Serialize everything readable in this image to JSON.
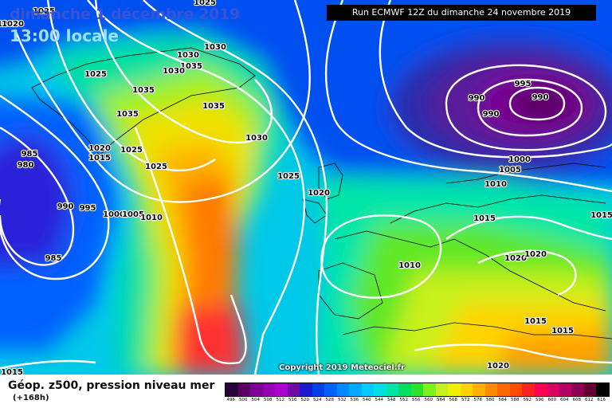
{
  "header": {
    "date_label": "dimanche 1 décembre 2019",
    "time_label": "13:00 locale",
    "run_label": "Run ECMWF 12Z du dimanche 24 novembre 2019"
  },
  "copyright": "Copyright 2019 Meteociel.fr",
  "legend": {
    "title": "Géop. z500, pression niveau mer",
    "lead": "(+168h)",
    "scale_values": [
      "496",
      "500",
      "504",
      "508",
      "512",
      "516",
      "520",
      "524",
      "528",
      "532",
      "536",
      "540",
      "544",
      "548",
      "552",
      "556",
      "560",
      "564",
      "568",
      "572",
      "576",
      "580",
      "584",
      "588",
      "592",
      "596",
      "600",
      "604",
      "608",
      "612",
      "616"
    ],
    "scale_colors": [
      "#2c003c",
      "#5a0064",
      "#7c0096",
      "#9600b4",
      "#aa00d0",
      "#6f0aa3",
      "#1c1ccf",
      "#0040e8",
      "#0060ff",
      "#0088ff",
      "#00aaff",
      "#00ccff",
      "#00e0e0",
      "#00e6a8",
      "#00e060",
      "#30e030",
      "#7ff01e",
      "#c8f01e",
      "#f0f000",
      "#ffd400",
      "#ffb000",
      "#ff8c00",
      "#ff6a00",
      "#ff4a00",
      "#ff2020",
      "#ff0050",
      "#dc0064",
      "#b40064",
      "#8c0050",
      "#640032",
      "#000000"
    ]
  },
  "isobars": [
    {
      "id": "a",
      "value": "1025"
    },
    {
      "id": "b",
      "value": "1030"
    },
    {
      "id": "c",
      "value": "1030"
    },
    {
      "id": "d",
      "value": "1030"
    },
    {
      "id": "e",
      "value": "1035"
    },
    {
      "id": "f",
      "value": "1030"
    },
    {
      "id": "g",
      "value": "1025"
    },
    {
      "id": "h",
      "value": "1035"
    },
    {
      "id": "i",
      "value": "1035"
    },
    {
      "id": "j",
      "value": "1035"
    },
    {
      "id": "k",
      "value": "1030"
    },
    {
      "id": "l",
      "value": "1020"
    },
    {
      "id": "m",
      "value": "1015"
    },
    {
      "id": "n",
      "value": "1025"
    },
    {
      "id": "o",
      "value": "1025"
    },
    {
      "id": "p",
      "value": "985"
    },
    {
      "id": "q",
      "value": "980"
    },
    {
      "id": "r",
      "value": "990"
    },
    {
      "id": "s",
      "value": "995"
    },
    {
      "id": "t",
      "value": "1000"
    },
    {
      "id": "u",
      "value": "1005"
    },
    {
      "id": "v",
      "value": "1010"
    },
    {
      "id": "w",
      "value": "1025"
    },
    {
      "id": "x",
      "value": "1020"
    },
    {
      "id": "y",
      "value": "985"
    },
    {
      "id": "z",
      "value": "995"
    },
    {
      "id": "aa",
      "value": "990"
    },
    {
      "id": "ab",
      "value": "990"
    },
    {
      "id": "ac",
      "value": "990"
    },
    {
      "id": "ad",
      "value": "1000"
    },
    {
      "id": "ae",
      "value": "1005"
    },
    {
      "id": "af",
      "value": "1010"
    },
    {
      "id": "ag",
      "value": "1015"
    },
    {
      "id": "ah",
      "value": "1015"
    },
    {
      "id": "ai",
      "value": "1020"
    },
    {
      "id": "aj",
      "value": "1020"
    },
    {
      "id": "ak",
      "value": "1010"
    },
    {
      "id": "al",
      "value": "1015"
    },
    {
      "id": "am",
      "value": "1015"
    },
    {
      "id": "an",
      "value": "1020"
    },
    {
      "id": "ao",
      "value": "1015"
    },
    {
      "id": "ap",
      "value": "1020"
    },
    {
      "id": "aq",
      "value": "1025"
    }
  ]
}
